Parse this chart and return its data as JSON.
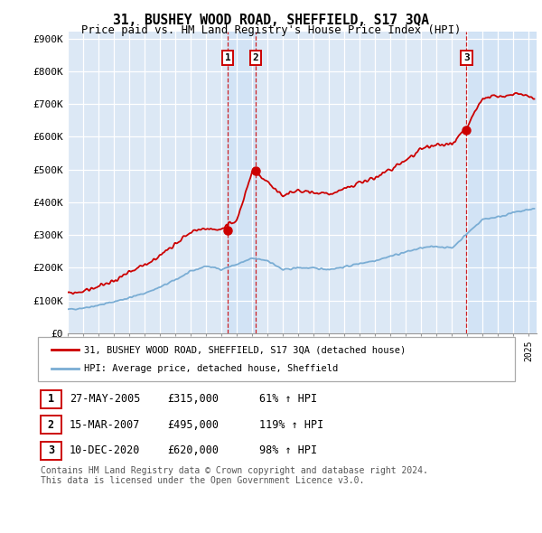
{
  "title": "31, BUSHEY WOOD ROAD, SHEFFIELD, S17 3QA",
  "subtitle": "Price paid vs. HM Land Registry's House Price Index (HPI)",
  "ylabel_ticks": [
    "£0",
    "£100K",
    "£200K",
    "£300K",
    "£400K",
    "£500K",
    "£600K",
    "£700K",
    "£800K",
    "£900K"
  ],
  "ytick_values": [
    0,
    100000,
    200000,
    300000,
    400000,
    500000,
    600000,
    700000,
    800000,
    900000
  ],
  "ylim": [
    0,
    920000
  ],
  "xlim_start": 1995.0,
  "xlim_end": 2025.5,
  "background_color": "#ddeeff",
  "plot_bg_color": "#dce8f5",
  "grid_color": "#ffffff",
  "sale1_date": 2005.41,
  "sale1_price": 315000,
  "sale1_label": "1",
  "sale2_date": 2007.21,
  "sale2_price": 495000,
  "sale2_label": "2",
  "sale3_date": 2020.94,
  "sale3_price": 620000,
  "sale3_label": "3",
  "legend_line1": "31, BUSHEY WOOD ROAD, SHEFFIELD, S17 3QA (detached house)",
  "legend_line2": "HPI: Average price, detached house, Sheffield",
  "table_rows": [
    [
      "1",
      "27-MAY-2005",
      "£315,000",
      "61% ↑ HPI"
    ],
    [
      "2",
      "15-MAR-2007",
      "£495,000",
      "119% ↑ HPI"
    ],
    [
      "3",
      "10-DEC-2020",
      "£620,000",
      "98% ↑ HPI"
    ]
  ],
  "footer": "Contains HM Land Registry data © Crown copyright and database right 2024.\nThis data is licensed under the Open Government Licence v3.0.",
  "red_line_color": "#cc0000",
  "blue_line_color": "#7aadd4",
  "vline_color": "#cc0000",
  "shade_color": "#cce0f5"
}
